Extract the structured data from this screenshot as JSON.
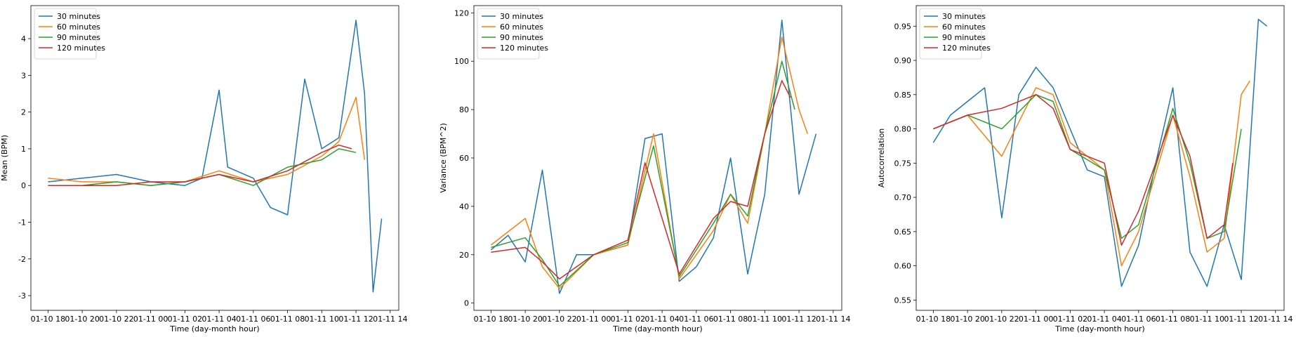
{
  "chart_data": [
    {
      "type": "line",
      "xlabel": "Time (day-month hour)",
      "ylabel": "Mean (BPM)",
      "x_tick_labels": [
        "01-10 18",
        "01-10 20",
        "01-10 22",
        "01-11 00",
        "01-11 02",
        "01-11 04",
        "01-11 06",
        "01-11 08",
        "01-11 10",
        "01-11 12",
        "01-11 14"
      ],
      "xlim": [
        "01-10 17:00",
        "01-11 14:30"
      ],
      "ylim": [
        -3.4,
        4.9
      ],
      "y_ticks": [
        -3,
        -2,
        -1,
        0,
        1,
        2,
        3,
        4
      ],
      "legend_position": "top-left",
      "grid": false,
      "series": [
        {
          "name": "30 minutes",
          "color": "#1f77b4",
          "x": [
            "01-10 18:00",
            "01-10 20:00",
            "01-10 22:00",
            "01-11 00:00",
            "01-11 02:00",
            "01-11 03:00",
            "01-11 04:00",
            "01-11 04:30",
            "01-11 06:00",
            "01-11 07:00",
            "01-11 08:00",
            "01-11 09:00",
            "01-11 10:00",
            "01-11 11:00",
            "01-11 12:00",
            "01-11 12:30",
            "01-11 13:00",
            "01-11 13:30"
          ],
          "y": [
            0.1,
            0.2,
            0.3,
            0.1,
            0.0,
            0.2,
            2.6,
            0.5,
            0.2,
            -0.6,
            -0.8,
            2.9,
            1.0,
            1.3,
            4.5,
            2.5,
            -2.9,
            -0.9
          ]
        },
        {
          "name": "60 minutes",
          "color": "#ff7f0e",
          "x": [
            "01-10 18:00",
            "01-10 20:00",
            "01-10 22:00",
            "01-11 00:00",
            "01-11 02:00",
            "01-11 04:00",
            "01-11 06:00",
            "01-11 08:00",
            "01-11 10:00",
            "01-11 11:00",
            "01-11 12:00",
            "01-11 12:30"
          ],
          "y": [
            0.2,
            0.1,
            0.1,
            0.0,
            0.1,
            0.4,
            0.1,
            0.3,
            0.8,
            1.2,
            2.4,
            0.7
          ]
        },
        {
          "name": "90 minutes",
          "color": "#2ca02c",
          "x": [
            "01-10 18:00",
            "01-10 20:00",
            "01-10 22:00",
            "01-11 00:00",
            "01-11 02:00",
            "01-11 04:00",
            "01-11 06:00",
            "01-11 08:00",
            "01-11 10:00",
            "01-11 11:00",
            "01-11 12:00"
          ],
          "y": [
            0.0,
            0.0,
            0.1,
            0.0,
            0.1,
            0.3,
            0.0,
            0.5,
            0.7,
            1.0,
            0.9
          ]
        },
        {
          "name": "120 minutes",
          "color": "#d62728",
          "x": [
            "01-10 18:00",
            "01-10 20:00",
            "01-10 22:00",
            "01-11 00:00",
            "01-11 02:00",
            "01-11 04:00",
            "01-11 06:00",
            "01-11 08:00",
            "01-11 10:00",
            "01-11 11:00",
            "01-11 11:45"
          ],
          "y": [
            0.0,
            0.0,
            0.0,
            0.1,
            0.1,
            0.3,
            0.1,
            0.4,
            0.9,
            1.1,
            1.0
          ]
        }
      ]
    },
    {
      "type": "line",
      "xlabel": "Time (day-month hour)",
      "ylabel": "Variance (BPM^2)",
      "x_tick_labels": [
        "01-10 18",
        "01-10 20",
        "01-10 22",
        "01-11 00",
        "01-11 02",
        "01-11 04",
        "01-11 06",
        "01-11 08",
        "01-11 10",
        "01-11 12",
        "01-11 14"
      ],
      "xlim": [
        "01-10 17:00",
        "01-11 14:30"
      ],
      "ylim": [
        -3,
        123
      ],
      "y_ticks": [
        0,
        20,
        40,
        60,
        80,
        100,
        120
      ],
      "legend_position": "top-left",
      "grid": false,
      "series": [
        {
          "name": "30 minutes",
          "color": "#1f77b4",
          "x": [
            "01-10 18:00",
            "01-10 19:00",
            "01-10 20:00",
            "01-10 21:00",
            "01-10 22:00",
            "01-10 23:00",
            "01-11 00:00",
            "01-11 02:00",
            "01-11 03:00",
            "01-11 04:00",
            "01-11 05:00",
            "01-11 06:00",
            "01-11 07:00",
            "01-11 08:00",
            "01-11 09:00",
            "01-11 10:00",
            "01-11 11:00",
            "01-11 12:00",
            "01-11 13:00"
          ],
          "y": [
            22,
            28,
            17,
            55,
            4,
            20,
            20,
            24,
            68,
            70,
            9,
            15,
            27,
            60,
            12,
            45,
            117,
            45,
            70
          ]
        },
        {
          "name": "60 minutes",
          "color": "#ff7f0e",
          "x": [
            "01-10 18:00",
            "01-10 20:00",
            "01-10 21:00",
            "01-10 22:00",
            "01-11 00:00",
            "01-11 02:00",
            "01-11 03:30",
            "01-11 05:00",
            "01-11 07:00",
            "01-11 08:00",
            "01-11 09:00",
            "01-11 10:00",
            "01-11 11:00",
            "01-11 12:00",
            "01-11 12:30"
          ],
          "y": [
            24,
            35,
            15,
            6,
            20,
            24,
            70,
            10,
            30,
            45,
            33,
            70,
            110,
            80,
            70
          ]
        },
        {
          "name": "90 minutes",
          "color": "#2ca02c",
          "x": [
            "01-10 18:00",
            "01-10 20:00",
            "01-10 21:00",
            "01-10 22:00",
            "01-11 00:00",
            "01-11 02:00",
            "01-11 03:30",
            "01-11 05:00",
            "01-11 07:00",
            "01-11 08:00",
            "01-11 09:00",
            "01-11 10:00",
            "01-11 11:00",
            "01-11 11:45"
          ],
          "y": [
            23,
            27,
            18,
            7,
            20,
            25,
            65,
            11,
            33,
            45,
            36,
            70,
            100,
            80
          ]
        },
        {
          "name": "120 minutes",
          "color": "#d62728",
          "x": [
            "01-10 18:00",
            "01-10 20:00",
            "01-10 21:00",
            "01-10 22:00",
            "01-11 00:00",
            "01-11 02:00",
            "01-11 03:00",
            "01-11 05:00",
            "01-11 07:00",
            "01-11 08:00",
            "01-11 09:00",
            "01-11 10:00",
            "01-11 11:00",
            "01-11 11:30"
          ],
          "y": [
            21,
            23,
            17,
            10,
            20,
            26,
            58,
            12,
            35,
            42,
            40,
            70,
            92,
            85
          ]
        }
      ]
    },
    {
      "type": "line",
      "xlabel": "Time (day-month hour)",
      "ylabel": "Autocorrelation",
      "x_tick_labels": [
        "01-10 18",
        "01-10 20",
        "01-10 22",
        "01-11 00",
        "01-11 02",
        "01-11 04",
        "01-11 06",
        "01-11 08",
        "01-11 10",
        "01-11 12",
        "01-11 14"
      ],
      "xlim": [
        "01-10 17:00",
        "01-11 14:30"
      ],
      "ylim": [
        0.535,
        0.98
      ],
      "y_ticks": [
        0.55,
        0.6,
        0.65,
        0.7,
        0.75,
        0.8,
        0.85,
        0.9,
        0.95
      ],
      "legend_position": "top-left",
      "grid": false,
      "series": [
        {
          "name": "30 minutes",
          "color": "#1f77b4",
          "x": [
            "01-10 18:00",
            "01-10 19:00",
            "01-10 20:00",
            "01-10 21:00",
            "01-10 22:00",
            "01-10 23:00",
            "01-11 00:00",
            "01-11 01:00",
            "01-11 02:00",
            "01-11 03:00",
            "01-11 04:00",
            "01-11 05:00",
            "01-11 06:00",
            "01-11 07:00",
            "01-11 08:00",
            "01-11 09:00",
            "01-11 10:00",
            "01-11 11:00",
            "01-11 12:00",
            "01-11 13:00",
            "01-11 13:30"
          ],
          "y": [
            0.78,
            0.82,
            0.84,
            0.86,
            0.67,
            0.85,
            0.89,
            0.86,
            0.8,
            0.74,
            0.73,
            0.57,
            0.63,
            0.75,
            0.86,
            0.62,
            0.57,
            0.66,
            0.58,
            0.96,
            0.95
          ]
        },
        {
          "name": "60 minutes",
          "color": "#ff7f0e",
          "x": [
            "01-10 18:00",
            "01-10 20:00",
            "01-10 22:00",
            "01-11 00:00",
            "01-11 01:00",
            "01-11 02:00",
            "01-11 04:00",
            "01-11 05:00",
            "01-11 06:00",
            "01-11 08:00",
            "01-11 09:00",
            "01-11 10:00",
            "01-11 11:00",
            "01-11 12:00",
            "01-11 12:30"
          ],
          "y": [
            0.8,
            0.82,
            0.76,
            0.86,
            0.85,
            0.78,
            0.74,
            0.6,
            0.65,
            0.82,
            0.73,
            0.62,
            0.64,
            0.85,
            0.87
          ]
        },
        {
          "name": "90 minutes",
          "color": "#2ca02c",
          "x": [
            "01-10 18:00",
            "01-10 20:00",
            "01-10 22:00",
            "01-11 00:00",
            "01-11 01:00",
            "01-11 02:00",
            "01-11 04:00",
            "01-11 05:00",
            "01-11 06:00",
            "01-11 08:00",
            "01-11 09:00",
            "01-11 10:00",
            "01-11 11:00",
            "01-11 12:00"
          ],
          "y": [
            0.8,
            0.82,
            0.8,
            0.85,
            0.84,
            0.77,
            0.74,
            0.64,
            0.66,
            0.83,
            0.75,
            0.64,
            0.65,
            0.8
          ]
        },
        {
          "name": "120 minutes",
          "color": "#d62728",
          "x": [
            "01-10 18:00",
            "01-10 20:00",
            "01-10 22:00",
            "01-11 00:00",
            "01-11 01:00",
            "01-11 02:00",
            "01-11 04:00",
            "01-11 05:00",
            "01-11 06:00",
            "01-11 08:00",
            "01-11 09:00",
            "01-11 10:00",
            "01-11 11:00",
            "01-11 11:30"
          ],
          "y": [
            0.8,
            0.82,
            0.83,
            0.85,
            0.83,
            0.77,
            0.75,
            0.63,
            0.68,
            0.82,
            0.76,
            0.64,
            0.66,
            0.75
          ]
        }
      ]
    }
  ]
}
